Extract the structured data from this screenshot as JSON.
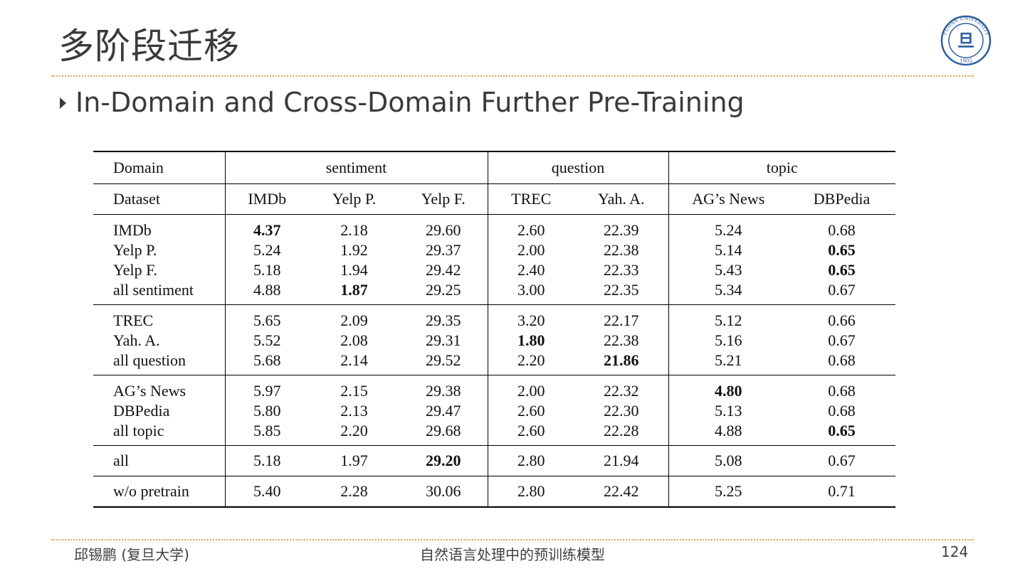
{
  "slide": {
    "title": "多阶段迁移",
    "bullet": "In-Domain and Cross-Domain Further Pre-Training"
  },
  "logo": {
    "name": "fudan-university-seal",
    "text": "FUDAN UNIVERSITY 1905"
  },
  "table": {
    "domain_header": {
      "label": "Domain",
      "groups": [
        "sentiment",
        "question",
        "topic"
      ]
    },
    "dataset_header": [
      "Dataset",
      "IMDb",
      "Yelp P.",
      "Yelp F.",
      "TREC",
      "Yah. A.",
      "AG’s News",
      "DBPedia"
    ],
    "groups": [
      {
        "rows": [
          {
            "label": "IMDb",
            "values": [
              "4.37",
              "2.18",
              "29.60",
              "2.60",
              "22.39",
              "5.24",
              "0.68"
            ],
            "bold": [
              0
            ]
          },
          {
            "label": "Yelp P.",
            "values": [
              "5.24",
              "1.92",
              "29.37",
              "2.00",
              "22.38",
              "5.14",
              "0.65"
            ],
            "bold": [
              6
            ]
          },
          {
            "label": "Yelp F.",
            "values": [
              "5.18",
              "1.94",
              "29.42",
              "2.40",
              "22.33",
              "5.43",
              "0.65"
            ],
            "bold": [
              6
            ]
          },
          {
            "label": "all sentiment",
            "values": [
              "4.88",
              "1.87",
              "29.25",
              "3.00",
              "22.35",
              "5.34",
              "0.67"
            ],
            "bold": [
              1
            ]
          }
        ]
      },
      {
        "rows": [
          {
            "label": "TREC",
            "values": [
              "5.65",
              "2.09",
              "29.35",
              "3.20",
              "22.17",
              "5.12",
              "0.66"
            ],
            "bold": []
          },
          {
            "label": "Yah. A.",
            "values": [
              "5.52",
              "2.08",
              "29.31",
              "1.80",
              "22.38",
              "5.16",
              "0.67"
            ],
            "bold": [
              3
            ]
          },
          {
            "label": "all question",
            "values": [
              "5.68",
              "2.14",
              "29.52",
              "2.20",
              "21.86",
              "5.21",
              "0.68"
            ],
            "bold": [
              4
            ]
          }
        ]
      },
      {
        "rows": [
          {
            "label": "AG’s News",
            "values": [
              "5.97",
              "2.15",
              "29.38",
              "2.00",
              "22.32",
              "4.80",
              "0.68"
            ],
            "bold": [
              5
            ]
          },
          {
            "label": "DBPedia",
            "values": [
              "5.80",
              "2.13",
              "29.47",
              "2.60",
              "22.30",
              "5.13",
              "0.68"
            ],
            "bold": []
          },
          {
            "label": "all topic",
            "values": [
              "5.85",
              "2.20",
              "29.68",
              "2.60",
              "22.28",
              "4.88",
              "0.65"
            ],
            "bold": [
              6
            ]
          }
        ]
      },
      {
        "rows": [
          {
            "label": "all",
            "values": [
              "5.18",
              "1.97",
              "29.20",
              "2.80",
              "21.94",
              "5.08",
              "0.67"
            ],
            "bold": [
              2
            ]
          }
        ]
      },
      {
        "rows": [
          {
            "label": "w/o pretrain",
            "values": [
              "5.40",
              "2.28",
              "30.06",
              "2.80",
              "22.42",
              "5.25",
              "0.71"
            ],
            "bold": []
          }
        ]
      }
    ]
  },
  "footer": {
    "author": "邱锡鹏 (复旦大学)",
    "course": "自然语言处理中的预训练模型",
    "page": "124"
  }
}
